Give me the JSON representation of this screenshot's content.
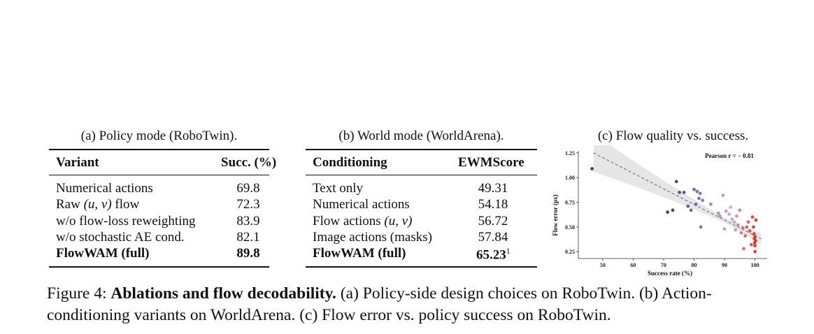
{
  "table_a": {
    "caption": "(a) Policy mode (RoboTwin).",
    "headers": [
      "Variant",
      "Succ. (%)"
    ],
    "rows": [
      {
        "label_pre": "Numerical actions",
        "label_math": "",
        "label_post": "",
        "value": "69.8"
      },
      {
        "label_pre": "Raw ",
        "label_math": "(u, v)",
        "label_post": " flow",
        "value": "72.3"
      },
      {
        "label_pre": "w/o flow-loss reweighting",
        "label_math": "",
        "label_post": "",
        "value": "83.9"
      },
      {
        "label_pre": "w/o stochastic AE cond.",
        "label_math": "",
        "label_post": "",
        "value": "82.1"
      },
      {
        "label_pre": "FlowWAM (full)",
        "label_math": "",
        "label_post": "",
        "value": "89.8"
      }
    ]
  },
  "table_b": {
    "caption": "(b) World mode (WorldArena).",
    "headers": [
      "Conditioning",
      "EWMScore"
    ],
    "rows": [
      {
        "label_pre": "Text only",
        "label_math": "",
        "value": "49.31",
        "sup": ""
      },
      {
        "label_pre": "Numerical actions",
        "label_math": "",
        "value": "54.18",
        "sup": ""
      },
      {
        "label_pre": "Flow actions ",
        "label_math": "(u, v)",
        "value": "56.72",
        "sup": ""
      },
      {
        "label_pre": "Image actions (masks)",
        "label_math": "",
        "value": "57.84",
        "sup": ""
      },
      {
        "label_pre": "FlowWAM (full)",
        "label_math": "",
        "value": "65.23",
        "sup": "1"
      }
    ]
  },
  "panel_c": {
    "caption": "(c) Flow quality vs. success.",
    "annotation": "Pearson r = − 0.81"
  },
  "chart_data": {
    "type": "scatter",
    "title": "",
    "xlabel": "Success rate (%)",
    "ylabel": "Flow error (px)",
    "xlim": [
      42,
      104
    ],
    "ylim": [
      0.18,
      1.27
    ],
    "xticks": [
      50,
      60,
      70,
      80,
      90,
      100
    ],
    "yticks": [
      0.25,
      0.5,
      0.75,
      1.0
    ],
    "ytick_labels": [
      "0.25",
      "0.50",
      "0.75",
      "1.00",
      "1.25"
    ],
    "yticks_all": [
      0.25,
      0.5,
      0.75,
      1.0,
      1.25
    ],
    "annotation": "Pearson r = − 0.81",
    "fit_line": {
      "x": [
        47,
        102
      ],
      "y": [
        1.25,
        0.38
      ]
    },
    "colors": {
      "low": "#2b2f7a",
      "mid": "#c9a6cc",
      "high": "#d8322a",
      "band": "#e6e6e6"
    },
    "points": [
      {
        "x": 46.5,
        "y": 1.09
      },
      {
        "x": 71.3,
        "y": 0.65
      },
      {
        "x": 73.0,
        "y": 0.67
      },
      {
        "x": 74.2,
        "y": 0.96
      },
      {
        "x": 75.2,
        "y": 0.85
      },
      {
        "x": 76.7,
        "y": 0.85
      },
      {
        "x": 78.0,
        "y": 0.71
      },
      {
        "x": 79.0,
        "y": 0.67
      },
      {
        "x": 80.0,
        "y": 0.88
      },
      {
        "x": 80.6,
        "y": 0.73
      },
      {
        "x": 81.0,
        "y": 0.86
      },
      {
        "x": 81.6,
        "y": 0.79
      },
      {
        "x": 82.0,
        "y": 0.84
      },
      {
        "x": 82.8,
        "y": 0.77
      },
      {
        "x": 82.2,
        "y": 0.5
      },
      {
        "x": 85.5,
        "y": 0.73
      },
      {
        "x": 88.0,
        "y": 0.64
      },
      {
        "x": 88.5,
        "y": 0.61
      },
      {
        "x": 89.5,
        "y": 0.82
      },
      {
        "x": 90.0,
        "y": 0.48
      },
      {
        "x": 90.5,
        "y": 0.66
      },
      {
        "x": 91.5,
        "y": 0.63
      },
      {
        "x": 92.0,
        "y": 0.7
      },
      {
        "x": 92.5,
        "y": 0.58
      },
      {
        "x": 93.2,
        "y": 0.55
      },
      {
        "x": 93.6,
        "y": 0.47
      },
      {
        "x": 94.0,
        "y": 0.61
      },
      {
        "x": 94.4,
        "y": 0.52
      },
      {
        "x": 95.0,
        "y": 0.67
      },
      {
        "x": 95.5,
        "y": 0.44
      },
      {
        "x": 96.0,
        "y": 0.49
      },
      {
        "x": 96.3,
        "y": 0.28
      },
      {
        "x": 96.8,
        "y": 0.41
      },
      {
        "x": 97.3,
        "y": 0.5
      },
      {
        "x": 97.8,
        "y": 0.55
      },
      {
        "x": 98.3,
        "y": 0.46
      },
      {
        "x": 98.8,
        "y": 0.32
      },
      {
        "x": 99.2,
        "y": 0.6
      },
      {
        "x": 99.5,
        "y": 0.5
      },
      {
        "x": 99.7,
        "y": 0.43
      },
      {
        "x": 99.8,
        "y": 0.38
      },
      {
        "x": 99.9,
        "y": 0.34
      },
      {
        "x": 100.0,
        "y": 0.4
      },
      {
        "x": 100.0,
        "y": 0.31
      },
      {
        "x": 100.0,
        "y": 0.25
      },
      {
        "x": 100.2,
        "y": 0.36
      },
      {
        "x": 100.3,
        "y": 0.57
      }
    ]
  },
  "figure_caption": {
    "label": "Figure 4:",
    "lead": "Ablations and flow decodability.",
    "body": " (a) Policy-side design choices on RoboTwin. (b) Action-conditioning variants on WorldArena. (c) Flow error vs. policy success on RoboTwin."
  }
}
